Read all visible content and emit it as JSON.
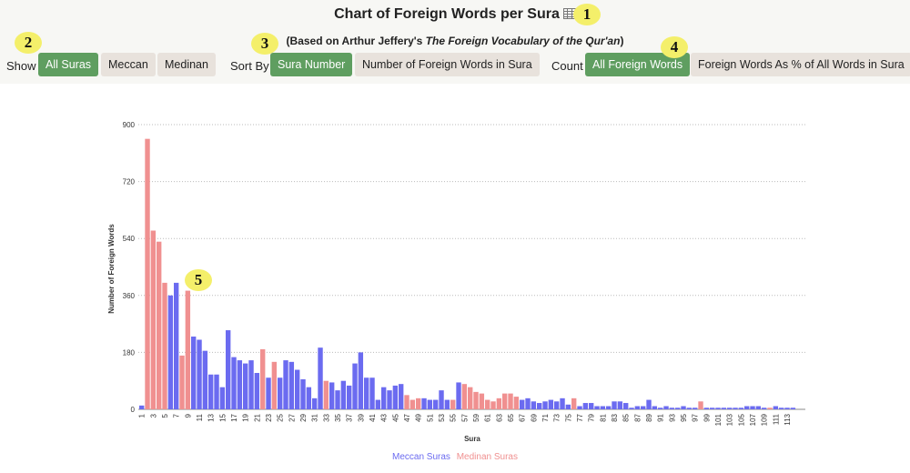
{
  "header": {
    "title": "Chart of Foreign Words per Sura",
    "subtitle_pre": "(Based on Arthur Jeffery's ",
    "subtitle_book": "The Foreign Vocabulary of the Qur'an",
    "subtitle_post": ")"
  },
  "controls": {
    "show_label": "Show",
    "show_options": [
      "All Suras",
      "Meccan",
      "Medinan"
    ],
    "sort_label": "Sort By",
    "sort_options": [
      "Sura Number",
      "Number of Foreign Words in Sura"
    ],
    "count_label": "Count",
    "count_options": [
      "All Foreign Words",
      "Foreign Words As % of All Words in Sura"
    ]
  },
  "badges": [
    "1",
    "2",
    "3",
    "4",
    "5"
  ],
  "colors": {
    "meccan": "#6b6bf0",
    "medinan": "#f09090",
    "active_button": "#5f9e60",
    "badge": "#f4ef6a"
  },
  "chart_data": {
    "type": "bar",
    "xlabel": "Sura",
    "ylabel": "Number of Foreign Words",
    "ylim": [
      0,
      900
    ],
    "yticks": [
      0,
      180,
      360,
      540,
      720,
      900
    ],
    "grid": "horizontal dotted",
    "legend_position": "bottom-center",
    "series": [
      {
        "name": "Meccan Suras",
        "key": "meccan"
      },
      {
        "name": "Medinan Suras",
        "key": "medinan"
      }
    ],
    "values": [
      12,
      855,
      565,
      530,
      400,
      360,
      400,
      170,
      375,
      230,
      220,
      185,
      110,
      110,
      70,
      250,
      165,
      155,
      145,
      155,
      115,
      190,
      100,
      150,
      100,
      155,
      150,
      125,
      95,
      70,
      35,
      195,
      90,
      85,
      60,
      90,
      75,
      145,
      180,
      100,
      100,
      30,
      70,
      60,
      75,
      80,
      45,
      30,
      35,
      35,
      30,
      30,
      60,
      30,
      30,
      85,
      80,
      70,
      55,
      50,
      30,
      25,
      35,
      50,
      50,
      40,
      30,
      35,
      25,
      20,
      25,
      30,
      25,
      35,
      15,
      35,
      10,
      20,
      20,
      10,
      10,
      10,
      25,
      25,
      20,
      5,
      10,
      10,
      30,
      10,
      5,
      10,
      5,
      5,
      10,
      5,
      5,
      25,
      5,
      5,
      5,
      5,
      5,
      5,
      5,
      10,
      10,
      10,
      5,
      5,
      10,
      5,
      5,
      5
    ],
    "medinan_suras": [
      2,
      3,
      4,
      5,
      8,
      9,
      22,
      24,
      33,
      47,
      48,
      49,
      55,
      57,
      58,
      59,
      60,
      61,
      62,
      63,
      64,
      65,
      66,
      76,
      98,
      110
    ],
    "xtick_labels": [
      "1",
      "3",
      "5",
      "7",
      "9",
      "11",
      "13",
      "15",
      "17",
      "19",
      "21",
      "23",
      "25",
      "27",
      "29",
      "31",
      "33",
      "35",
      "37",
      "39",
      "41",
      "43",
      "45",
      "47",
      "49",
      "51",
      "53",
      "55",
      "57",
      "59",
      "61",
      "63",
      "65",
      "67",
      "69",
      "71",
      "73",
      "75",
      "77",
      "79",
      "81",
      "83",
      "85",
      "87",
      "89",
      "91",
      "93",
      "95",
      "97",
      "99",
      "101",
      "103",
      "105",
      "107",
      "109",
      "111",
      "113"
    ]
  }
}
